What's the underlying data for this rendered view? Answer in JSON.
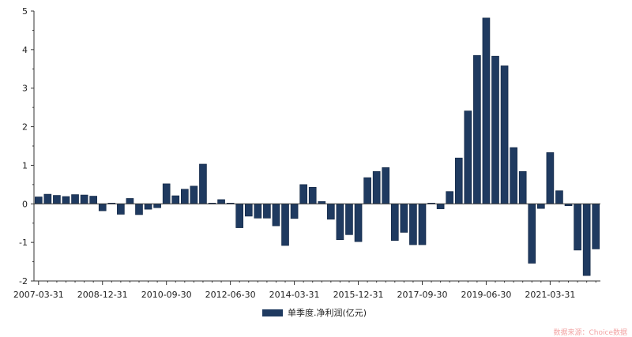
{
  "chart_data": {
    "type": "bar",
    "title": "",
    "xlabel": "",
    "ylabel": "",
    "ylim": [
      -2,
      5
    ],
    "yticks": [
      -2,
      -1,
      0,
      1,
      2,
      3,
      4,
      5
    ],
    "x_tick_labels": [
      "2007-03-31",
      "2008-12-31",
      "2010-09-30",
      "2012-06-30",
      "2014-03-31",
      "2015-12-31",
      "2017-09-30",
      "2019-06-30",
      "2021-03-31"
    ],
    "bar_color": "#1f3a60",
    "grid": false,
    "legend_position": "bottom-center",
    "series": [
      {
        "name": "单季度.净利润(亿元)",
        "values": [
          0.18,
          0.25,
          0.22,
          0.19,
          0.24,
          0.23,
          0.2,
          -0.18,
          0.02,
          -0.27,
          0.14,
          -0.28,
          -0.14,
          -0.1,
          0.52,
          0.21,
          0.38,
          0.46,
          1.03,
          0.02,
          0.11,
          0.02,
          -0.62,
          -0.32,
          -0.37,
          -0.37,
          -0.57,
          -1.08,
          -0.38,
          0.5,
          0.43,
          0.06,
          -0.4,
          -0.93,
          -0.8,
          -0.98,
          0.68,
          0.84,
          0.94,
          -0.95,
          -0.74,
          -1.06,
          -1.06,
          0.02,
          -0.13,
          0.32,
          1.19,
          2.41,
          3.85,
          4.82,
          3.83,
          3.58,
          1.46,
          0.84,
          -1.54,
          -0.12,
          1.33,
          0.34,
          -0.05,
          -1.2,
          -1.86,
          -1.17
        ]
      }
    ]
  },
  "legend_label": "单季度.净利润(亿元)",
  "source_text": "数据来源：Choice数据"
}
